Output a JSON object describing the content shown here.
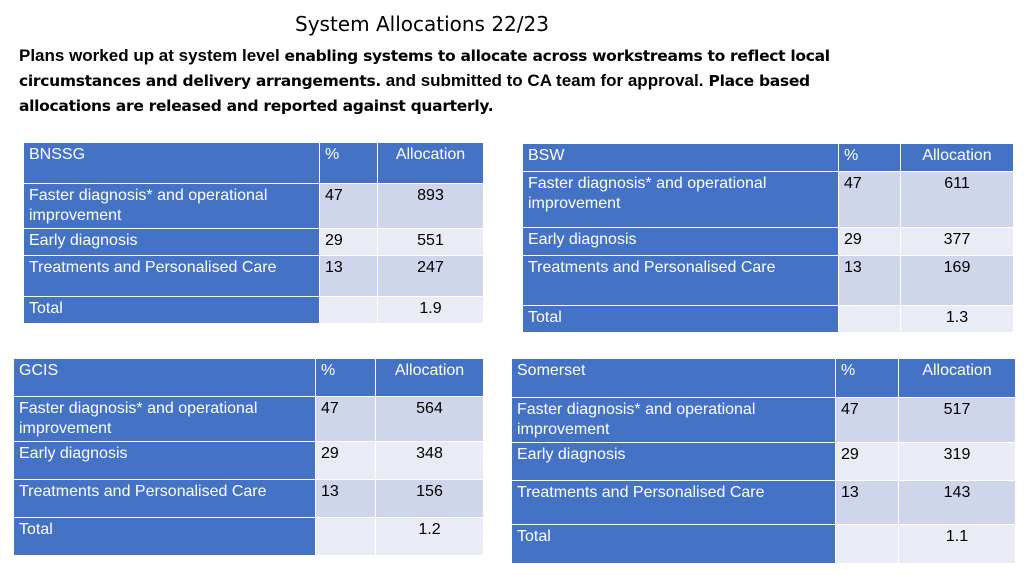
{
  "title": "System Allocations 22/23",
  "intro": {
    "part1": "Plans worked up at system level ",
    "part2": "enabling systems to allocate across workstreams to reflect local circumstances and delivery arrangements.",
    "part3": " and submitted to CA team for approval.",
    "part4": " Place based allocations are released and reported against quarterly."
  },
  "tables": {
    "bnssg": {
      "header": {
        "name": "BNSSG",
        "pct": "%",
        "alloc": "Allocation"
      },
      "rows": [
        {
          "name": "Faster diagnosis* and operational improvement",
          "pct": "47",
          "alloc": "893"
        },
        {
          "name": "Early diagnosis",
          "pct": "29",
          "alloc": "551"
        },
        {
          "name": "Treatments and Personalised Care",
          "pct": "13",
          "alloc": "247"
        }
      ],
      "total": {
        "name": "Total",
        "pct": "",
        "alloc": "1.9"
      }
    },
    "bsw": {
      "header": {
        "name": "BSW",
        "pct": "%",
        "alloc": "Allocation"
      },
      "rows": [
        {
          "name": "Faster diagnosis* and operational improvement",
          "pct": "47",
          "alloc": "611"
        },
        {
          "name": "Early diagnosis",
          "pct": "29",
          "alloc": "377"
        },
        {
          "name": "Treatments and Personalised Care",
          "pct": "13",
          "alloc": "169"
        }
      ],
      "total": {
        "name": "Total",
        "pct": "",
        "alloc": "1.3"
      }
    },
    "gcis": {
      "header": {
        "name": "GCIS",
        "pct": "%",
        "alloc": "Allocation"
      },
      "rows": [
        {
          "name": "Faster diagnosis* and operational improvement",
          "pct": "47",
          "alloc": "564"
        },
        {
          "name": "Early diagnosis",
          "pct": "29",
          "alloc": "348"
        },
        {
          "name": "Treatments and Personalised Care",
          "pct": "13",
          "alloc": "156"
        }
      ],
      "total": {
        "name": "Total",
        "pct": "",
        "alloc": "1.2"
      }
    },
    "somerset": {
      "header": {
        "name": "Somerset",
        "pct": "%",
        "alloc": "Allocation"
      },
      "rows": [
        {
          "name": "Faster diagnosis* and operational improvement",
          "pct": "47",
          "alloc": "517"
        },
        {
          "name": "Early diagnosis",
          "pct": "29",
          "alloc": "319"
        },
        {
          "name": "Treatments and Personalised Care",
          "pct": "13",
          "alloc": "143"
        }
      ],
      "total": {
        "name": "Total",
        "pct": "",
        "alloc": "1.1"
      }
    }
  }
}
